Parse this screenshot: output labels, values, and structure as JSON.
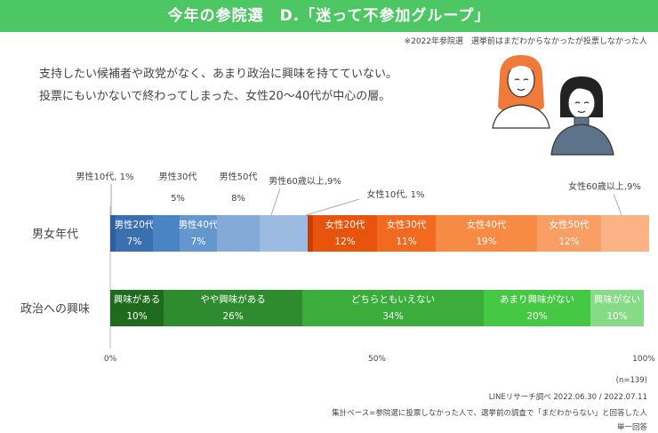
{
  "title": "今年の参院選　D.「迷って不参加グループ」",
  "note": "※2022年参院選　選挙前はまだわからなかったが投票しなかった人",
  "lead": [
    "支持したい候補者や政党がなく、あまり政治に興味を持てていない。",
    "投票にもいかないで終わってしまった、女性20～40代が中心の層。"
  ],
  "footer": {
    "n": "(n=139)",
    "source": "LINEリサーチ調べ 2022.06.30 / 2022.07.11",
    "base": "集計ベース=参院選に投票しなかった人で、選挙前の調査で「まだわからない」と回答した人",
    "type": "単一回答"
  },
  "chart_data": {
    "type": "bar",
    "stacked": "100%",
    "orientation": "horizontal",
    "categories": [
      "男女年代",
      "政治への興味"
    ],
    "x_ticks": [
      "0%",
      "50%",
      "100%"
    ],
    "xlim": [
      0,
      100
    ],
    "rows": [
      {
        "label": "男女年代",
        "segments": [
          {
            "name": "男性10代",
            "value": 1,
            "label": "男性10代, 1%",
            "color": "#2f5f9e"
          },
          {
            "name": "男性20代",
            "value": 7,
            "label": "男性20代",
            "value_label": "7%",
            "color": "#3a6fb2"
          },
          {
            "name": "男性30代",
            "value": 5,
            "label": "男性30代",
            "value_label": "5%",
            "color": "#4a84c4"
          },
          {
            "name": "男性40代",
            "value": 7,
            "label": "男性40代",
            "value_label": "7%",
            "color": "#6597cf"
          },
          {
            "name": "男性50代",
            "value": 8,
            "label": "男性50代",
            "value_label": "8%",
            "color": "#84aad8"
          },
          {
            "name": "男性60歳以上",
            "value": 9,
            "label": "男性60歳以上,9%",
            "color": "#9bbbe0"
          },
          {
            "name": "女性10代",
            "value": 1,
            "label": "女性10代, 1%",
            "color": "#cc3c00"
          },
          {
            "name": "女性20代",
            "value": 12,
            "label": "女性20代",
            "value_label": "12%",
            "color": "#e8540c"
          },
          {
            "name": "女性30代",
            "value": 11,
            "label": "女性30代",
            "value_label": "11%",
            "color": "#f26a1f"
          },
          {
            "name": "女性40代",
            "value": 19,
            "label": "女性40代",
            "value_label": "19%",
            "color": "#f78b44"
          },
          {
            "name": "女性50代",
            "value": 12,
            "label": "女性50代",
            "value_label": "12%",
            "color": "#f99f66"
          },
          {
            "name": "女性60歳以上",
            "value": 9,
            "label": "女性60歳以上,9%",
            "color": "#fbb285"
          }
        ]
      },
      {
        "label": "政治への興味",
        "segments": [
          {
            "name": "興味がある",
            "value": 10,
            "label": "興味がある",
            "value_label": "10%",
            "color": "#1e6b1e"
          },
          {
            "name": "やや興味がある",
            "value": 26,
            "label": "やや興味がある",
            "value_label": "26%",
            "color": "#2e8b2e"
          },
          {
            "name": "どちらともいえない",
            "value": 34,
            "label": "どちらともいえない",
            "value_label": "34%",
            "color": "#3aad3a"
          },
          {
            "name": "あまり興味がない",
            "value": 20,
            "label": "あまり興味がない",
            "value_label": "20%",
            "color": "#45c945"
          },
          {
            "name": "興味がない",
            "value": 10,
            "label": "興味がない",
            "value_label": "10%",
            "color": "#86dc86"
          }
        ]
      }
    ]
  }
}
